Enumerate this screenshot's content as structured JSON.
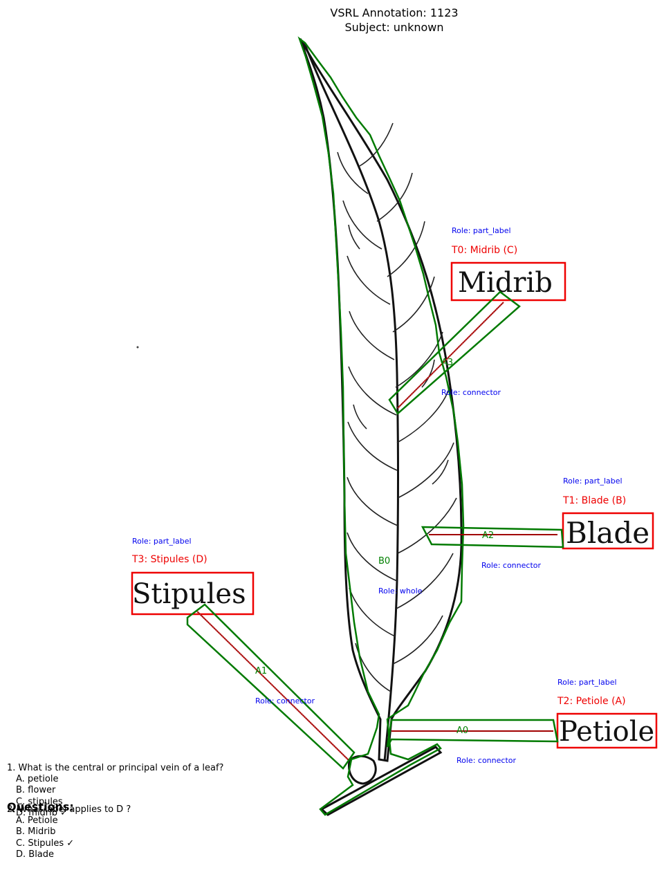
{
  "header": {
    "title_line1": "VSRL Annotation: 1123",
    "title_line2": "Subject: unknown"
  },
  "labels": {
    "midrib": {
      "role": "Role: part_label",
      "tag": "T0: Midrib (C)",
      "word": "Midrib"
    },
    "blade": {
      "role": "Role: part_label",
      "tag": "T1: Blade (B)",
      "word": "Blade"
    },
    "petiole": {
      "role": "Role: part_label",
      "tag": "T2: Petiole (A)",
      "word": "Petiole"
    },
    "stipules": {
      "role": "Role: part_label",
      "tag": "T3: Stipules (D)",
      "word": "Stipules"
    }
  },
  "arrows": {
    "a0": {
      "name": "A0",
      "role": "Role: connector"
    },
    "a1": {
      "name": "A1",
      "role": "Role: connector"
    },
    "a2": {
      "name": "A2",
      "role": "Role: connector"
    },
    "a3": {
      "name": "A3",
      "role": "Role: connector"
    }
  },
  "blob": {
    "name": "B0",
    "role": "Role: whole"
  },
  "questions": {
    "heading": "Questions:",
    "q1": {
      "text": "1. What is the central or principal vein of a leaf?",
      "options": [
        "A. petiole",
        "B. flower",
        "C. stipules",
        "D. midrib ✓"
      ]
    },
    "q2": {
      "text": "2. What label applies to D ?",
      "options": [
        "A. Petiole",
        "B. Midrib",
        "C. Stipules ✓",
        "D. Blade"
      ]
    }
  },
  "colors": {
    "label_box": "#ee0000",
    "region_outline": "#007a00",
    "role_text": "#0000ee"
  }
}
